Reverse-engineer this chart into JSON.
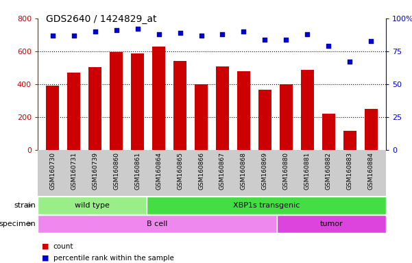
{
  "title": "GDS2640 / 1424829_at",
  "samples": [
    "GSM160730",
    "GSM160731",
    "GSM160739",
    "GSM160860",
    "GSM160861",
    "GSM160864",
    "GSM160865",
    "GSM160866",
    "GSM160867",
    "GSM160868",
    "GSM160869",
    "GSM160880",
    "GSM160881",
    "GSM160882",
    "GSM160883",
    "GSM160884"
  ],
  "counts": [
    390,
    470,
    505,
    595,
    585,
    630,
    540,
    400,
    507,
    480,
    365,
    400,
    485,
    220,
    115,
    248
  ],
  "percentiles": [
    87,
    87,
    90,
    91,
    92,
    88,
    89,
    87,
    88,
    90,
    84,
    84,
    88,
    79,
    67,
    83
  ],
  "bar_color": "#cc0000",
  "dot_color": "#0000cc",
  "ylim_left": [
    0,
    800
  ],
  "ylim_right": [
    0,
    100
  ],
  "yticks_left": [
    0,
    200,
    400,
    600,
    800
  ],
  "yticks_right": [
    0,
    25,
    50,
    75,
    100
  ],
  "grid_values": [
    200,
    400,
    600
  ],
  "strain_groups": [
    {
      "label": "wild type",
      "start": 0,
      "end": 5,
      "color": "#99ee88"
    },
    {
      "label": "XBP1s transgenic",
      "start": 5,
      "end": 16,
      "color": "#44dd44"
    }
  ],
  "specimen_groups": [
    {
      "label": "B cell",
      "start": 0,
      "end": 11,
      "color": "#ee88ee"
    },
    {
      "label": "tumor",
      "start": 11,
      "end": 16,
      "color": "#dd44dd"
    }
  ],
  "strain_label": "strain",
  "specimen_label": "specimen",
  "legend_count_label": "count",
  "legend_pct_label": "percentile rank within the sample",
  "bar_width": 0.6,
  "tick_bg_color": "#cccccc",
  "right_axis_color": "#0000cc",
  "left_axis_color": "#cc0000",
  "n_samples": 16
}
